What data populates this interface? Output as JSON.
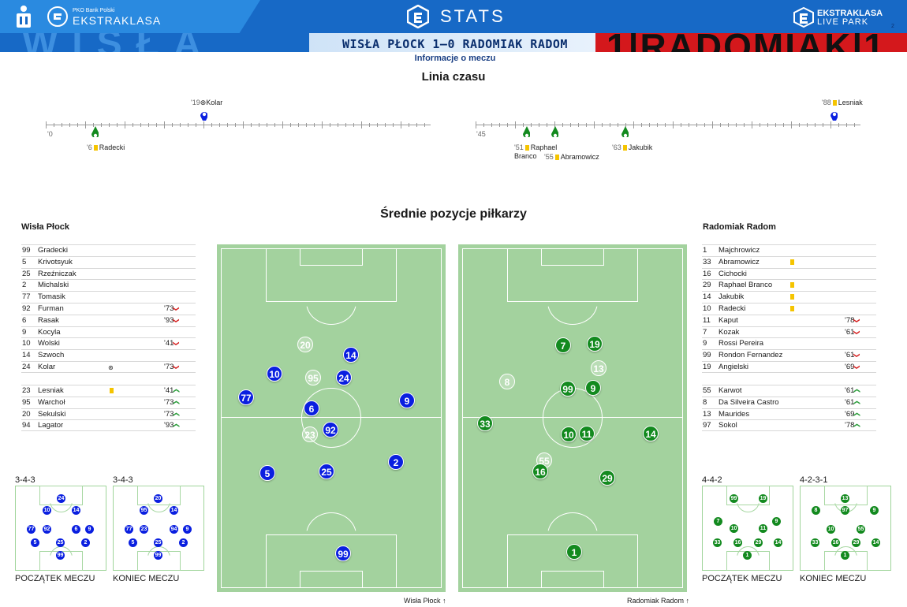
{
  "header": {
    "league_small": "PKO Bank Polski",
    "league": "EKSTRAKLASA",
    "stats_label": "STATS",
    "right_brand_top": "EKSTRAKLASA",
    "right_brand_bottom": "LIVE PARK",
    "page_number": "2",
    "banner_left_text": "WISŁA",
    "banner_right_text": "1|RADOMIAK|1",
    "match_title": "WISŁA PŁOCK 1–0 RADOMIAK RADOM",
    "info_link": "Informacje o meczu"
  },
  "timeline": {
    "title": "Linia czasu",
    "first_half_start": "'0",
    "second_half_start": "'45",
    "events_top": [
      {
        "minute": "'19",
        "icon": "ball-icon",
        "player": "Kolar"
      },
      {
        "minute": "'88",
        "icon": "yellow-card-icon",
        "player": "Lesniak"
      }
    ],
    "events_bottom": [
      {
        "minute": "'6",
        "icon": "yellow-card-icon",
        "player": "Radecki"
      },
      {
        "minute": "'51",
        "icon": "yellow-card-icon",
        "player": "Raphael Branco"
      },
      {
        "minute": "'55",
        "icon": "yellow-card-icon",
        "player": "Abramowicz"
      },
      {
        "minute": "'63",
        "icon": "yellow-card-icon",
        "player": "Jakubik"
      }
    ],
    "colors": {
      "home": "#0a1fe0",
      "away": "#138a1f"
    }
  },
  "positions_title": "Średnie pozycje piłkarzy",
  "home": {
    "name": "Wisła Płock",
    "starters": [
      {
        "num": "99",
        "name": "Gradecki",
        "mark": "",
        "time": "",
        "arrow": ""
      },
      {
        "num": "5",
        "name": "Krivotsyuk",
        "mark": "",
        "time": "",
        "arrow": ""
      },
      {
        "num": "25",
        "name": "Rzeźniczak",
        "mark": "",
        "time": "",
        "arrow": ""
      },
      {
        "num": "2",
        "name": "Michalski",
        "mark": "",
        "time": "",
        "arrow": ""
      },
      {
        "num": "77",
        "name": "Tomasik",
        "mark": "",
        "time": "",
        "arrow": ""
      },
      {
        "num": "92",
        "name": "Furman",
        "mark": "",
        "time": "'73",
        "arrow": "down"
      },
      {
        "num": "6",
        "name": "Rasak",
        "mark": "",
        "time": "'93",
        "arrow": "down"
      },
      {
        "num": "9",
        "name": "Kocyla",
        "mark": "",
        "time": "",
        "arrow": ""
      },
      {
        "num": "10",
        "name": "Wolski",
        "mark": "",
        "time": "'41",
        "arrow": "down"
      },
      {
        "num": "14",
        "name": "Szwoch",
        "mark": "",
        "time": "",
        "arrow": ""
      },
      {
        "num": "24",
        "name": "Kolar",
        "mark": "ball",
        "time": "'73",
        "arrow": "down"
      }
    ],
    "subs": [
      {
        "num": "23",
        "name": "Lesniak",
        "mark": "yellow",
        "time": "'41",
        "arrow": "up"
      },
      {
        "num": "95",
        "name": "Warchoł",
        "mark": "",
        "time": "'73",
        "arrow": "up"
      },
      {
        "num": "20",
        "name": "Sekulski",
        "mark": "",
        "time": "'73",
        "arrow": "up"
      },
      {
        "num": "94",
        "name": "Lagator",
        "mark": "",
        "time": "'93",
        "arrow": "up"
      }
    ],
    "direction_label": "Wisła Płock",
    "formation_start": "3-4-3",
    "formation_end": "3-4-3"
  },
  "away": {
    "name": "Radomiak Radom",
    "starters": [
      {
        "num": "1",
        "name": "Majchrowicz",
        "mark": "",
        "time": "",
        "arrow": ""
      },
      {
        "num": "33",
        "name": "Abramowicz",
        "mark": "yellow",
        "time": "",
        "arrow": ""
      },
      {
        "num": "16",
        "name": "Cichocki",
        "mark": "",
        "time": "",
        "arrow": ""
      },
      {
        "num": "29",
        "name": "Raphael Branco",
        "mark": "yellow",
        "time": "",
        "arrow": ""
      },
      {
        "num": "14",
        "name": "Jakubik",
        "mark": "yellow",
        "time": "",
        "arrow": ""
      },
      {
        "num": "10",
        "name": "Radecki",
        "mark": "yellow",
        "time": "",
        "arrow": ""
      },
      {
        "num": "11",
        "name": "Kaput",
        "mark": "",
        "time": "'78",
        "arrow": "down"
      },
      {
        "num": "7",
        "name": "Kozak",
        "mark": "",
        "time": "'61",
        "arrow": "down"
      },
      {
        "num": "9",
        "name": "Rossi Pereira",
        "mark": "",
        "time": "",
        "arrow": ""
      },
      {
        "num": "99",
        "name": "Rondon Fernandez",
        "mark": "",
        "time": "'61",
        "arrow": "down"
      },
      {
        "num": "19",
        "name": "Angielski",
        "mark": "",
        "time": "'69",
        "arrow": "down"
      }
    ],
    "subs": [
      {
        "num": "55",
        "name": "Karwot",
        "mark": "",
        "time": "'61",
        "arrow": "up"
      },
      {
        "num": "8",
        "name": "Da Silveira Castro",
        "mark": "",
        "time": "'61",
        "arrow": "up"
      },
      {
        "num": "13",
        "name": "Maurides",
        "mark": "",
        "time": "'69",
        "arrow": "up"
      },
      {
        "num": "97",
        "name": "Sokol",
        "mark": "",
        "time": "'78",
        "arrow": "up"
      }
    ],
    "direction_label": "Radomiak Radom",
    "formation_start": "4-4-2",
    "formation_end": "4-2-3-1"
  },
  "pitch_home_players": [
    {
      "num": "20",
      "ghost": true
    },
    {
      "num": "14",
      "ghost": false
    },
    {
      "num": "10",
      "ghost": false
    },
    {
      "num": "95",
      "ghost": true
    },
    {
      "num": "24",
      "ghost": false
    },
    {
      "num": "77",
      "ghost": false
    },
    {
      "num": "9",
      "ghost": false
    },
    {
      "num": "6",
      "ghost": false
    },
    {
      "num": "92",
      "ghost": false
    },
    {
      "num": "23",
      "ghost": true
    },
    {
      "num": "2",
      "ghost": false
    },
    {
      "num": "5",
      "ghost": false
    },
    {
      "num": "25",
      "ghost": false
    },
    {
      "num": "99",
      "ghost": false
    }
  ],
  "pitch_away_players": [
    {
      "num": "7",
      "ghost": false
    },
    {
      "num": "19",
      "ghost": false
    },
    {
      "num": "13",
      "ghost": true
    },
    {
      "num": "8",
      "ghost": true
    },
    {
      "num": "99",
      "ghost": false
    },
    {
      "num": "9",
      "ghost": false
    },
    {
      "num": "33",
      "ghost": false
    },
    {
      "num": "10",
      "ghost": false
    },
    {
      "num": "11",
      "ghost": false
    },
    {
      "num": "14",
      "ghost": false
    },
    {
      "num": "55",
      "ghost": true
    },
    {
      "num": "16",
      "ghost": false
    },
    {
      "num": "29",
      "ghost": false
    },
    {
      "num": "1",
      "ghost": false
    }
  ],
  "mini_labels": {
    "start": "POCZĄTEK MECZU",
    "end": "KONIEC MECZU"
  },
  "mini_home_start": [
    "24",
    "10",
    "14",
    "77",
    "92",
    "6",
    "9",
    "5",
    "25",
    "2",
    "99"
  ],
  "mini_home_end": [
    "20",
    "95",
    "14",
    "77",
    "23",
    "94",
    "9",
    "5",
    "25",
    "2",
    "99"
  ],
  "mini_away_start": [
    "99",
    "19",
    "7",
    "10",
    "11",
    "9",
    "33",
    "16",
    "29",
    "14",
    "1"
  ],
  "mini_away_end": [
    "13",
    "8",
    "97",
    "9",
    "10",
    "55",
    "33",
    "16",
    "29",
    "14",
    "1"
  ]
}
